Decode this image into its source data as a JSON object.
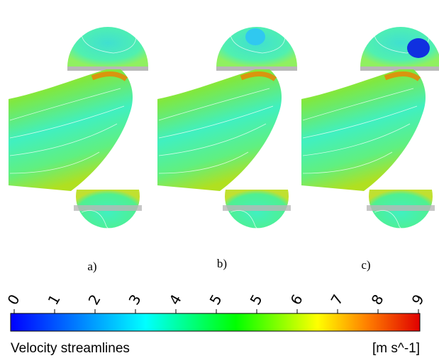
{
  "panels": [
    {
      "label": "a)"
    },
    {
      "label": "b)"
    },
    {
      "label": "c)"
    }
  ],
  "colorbar": {
    "tick_labels": [
      "0",
      "1",
      "2",
      "3",
      "4",
      "5",
      "5",
      "6",
      "7",
      "8",
      "9"
    ],
    "title": "Velocity streamlines",
    "unit": "[m s^-1]"
  }
}
